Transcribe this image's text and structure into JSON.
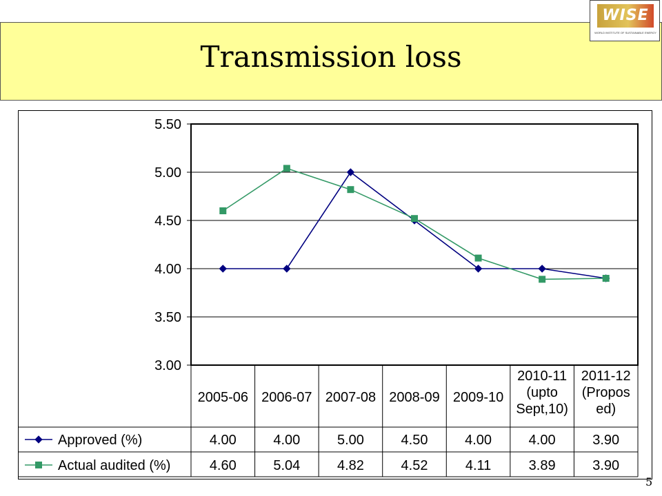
{
  "slide": {
    "title": "Transmission loss",
    "page_number": "5",
    "logo_text": "WISE",
    "logo_subtext": "WORLD INSTITUTE OF SUSTAINABLE ENERGY"
  },
  "colors": {
    "title_band": "#ffff99",
    "series_approved": "#000080",
    "series_actual": "#339966"
  },
  "chart_data": {
    "type": "line",
    "title": "",
    "xlabel": "",
    "ylabel": "",
    "ylim": [
      3.0,
      5.5
    ],
    "yticks": [
      "3.00",
      "3.50",
      "4.00",
      "4.50",
      "5.00",
      "5.50"
    ],
    "grid": true,
    "legend": "data-table-left",
    "categories": [
      [
        "2005-06"
      ],
      [
        "2006-07"
      ],
      [
        "2007-08"
      ],
      [
        "2008-09"
      ],
      [
        "2009-10"
      ],
      [
        "2010-11",
        "(upto",
        "Sept,10)"
      ],
      [
        "2011-12",
        "(Propos",
        "ed)"
      ]
    ],
    "series": [
      {
        "name": "Approved (%)",
        "values": [
          4.0,
          4.0,
          5.0,
          4.5,
          4.0,
          4.0,
          3.9
        ],
        "labels": [
          "4.00",
          "4.00",
          "5.00",
          "4.50",
          "4.00",
          "4.00",
          "3.90"
        ],
        "marker": "diamond"
      },
      {
        "name": "Actual audited (%)",
        "values": [
          4.6,
          5.04,
          4.82,
          4.52,
          4.11,
          3.89,
          3.9
        ],
        "labels": [
          "4.60",
          "5.04",
          "4.82",
          "4.52",
          "4.11",
          "3.89",
          "3.90"
        ],
        "marker": "square"
      }
    ]
  }
}
